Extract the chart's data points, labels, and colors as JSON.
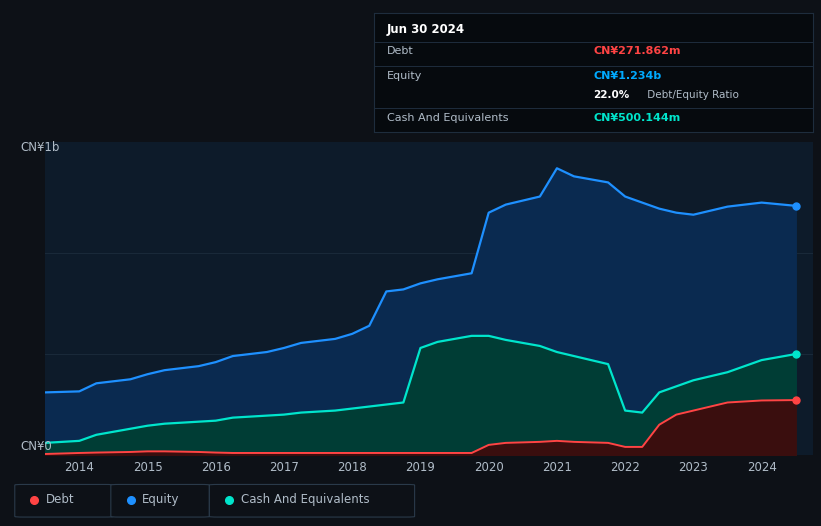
{
  "background_color": "#0d1117",
  "plot_bg_color": "#0d1b2a",
  "title_box": {
    "date": "Jun 30 2024",
    "debt_label": "Debt",
    "debt_value": "CN¥271.862m",
    "debt_color": "#ff4444",
    "equity_label": "Equity",
    "equity_value": "CN¥1.234b",
    "equity_color": "#00aaff",
    "cash_label": "Cash And Equivalents",
    "cash_value": "CN¥500.144m",
    "cash_color": "#00e5cc"
  },
  "ylabel_top": "CN¥1b",
  "ylabel_bottom": "CN¥0",
  "years": [
    2013.5,
    2014.0,
    2014.25,
    2014.75,
    2015.0,
    2015.25,
    2015.75,
    2016.0,
    2016.25,
    2016.75,
    2017.0,
    2017.25,
    2017.75,
    2018.0,
    2018.25,
    2018.5,
    2018.75,
    2019.0,
    2019.25,
    2019.75,
    2020.0,
    2020.25,
    2020.75,
    2021.0,
    2021.25,
    2021.75,
    2022.0,
    2022.25,
    2022.5,
    2022.75,
    2023.0,
    2023.25,
    2023.5,
    2023.75,
    2024.0,
    2024.5
  ],
  "equity": [
    0.31,
    0.315,
    0.355,
    0.375,
    0.4,
    0.42,
    0.44,
    0.46,
    0.49,
    0.51,
    0.53,
    0.555,
    0.575,
    0.6,
    0.64,
    0.81,
    0.82,
    0.85,
    0.87,
    0.9,
    1.2,
    1.24,
    1.28,
    1.42,
    1.38,
    1.35,
    1.28,
    1.25,
    1.22,
    1.2,
    1.19,
    1.21,
    1.23,
    1.24,
    1.25,
    1.234
  ],
  "cash": [
    0.06,
    0.07,
    0.1,
    0.13,
    0.145,
    0.155,
    0.165,
    0.17,
    0.185,
    0.195,
    0.2,
    0.21,
    0.22,
    0.23,
    0.24,
    0.25,
    0.26,
    0.53,
    0.56,
    0.59,
    0.59,
    0.57,
    0.54,
    0.51,
    0.49,
    0.45,
    0.22,
    0.21,
    0.31,
    0.34,
    0.37,
    0.39,
    0.41,
    0.44,
    0.47,
    0.5
  ],
  "debt": [
    0.005,
    0.01,
    0.012,
    0.015,
    0.018,
    0.018,
    0.015,
    0.012,
    0.01,
    0.01,
    0.01,
    0.01,
    0.01,
    0.01,
    0.01,
    0.01,
    0.01,
    0.01,
    0.01,
    0.01,
    0.05,
    0.06,
    0.065,
    0.07,
    0.065,
    0.06,
    0.04,
    0.04,
    0.15,
    0.2,
    0.22,
    0.24,
    0.26,
    0.265,
    0.27,
    0.272
  ],
  "equity_color": "#1e90ff",
  "equity_fill_color": "#0a2a50",
  "cash_color": "#00e5cc",
  "cash_fill_color": "#003d35",
  "debt_color": "#ff4444",
  "debt_fill_color": "#3a0e0e",
  "grid_color": "#1a2a3a",
  "text_color": "#b0bcc8",
  "xlim": [
    2013.5,
    2024.75
  ],
  "ylim": [
    0.0,
    1.55
  ],
  "xtick_years": [
    2014,
    2015,
    2016,
    2017,
    2018,
    2019,
    2020,
    2021,
    2022,
    2023,
    2024
  ]
}
